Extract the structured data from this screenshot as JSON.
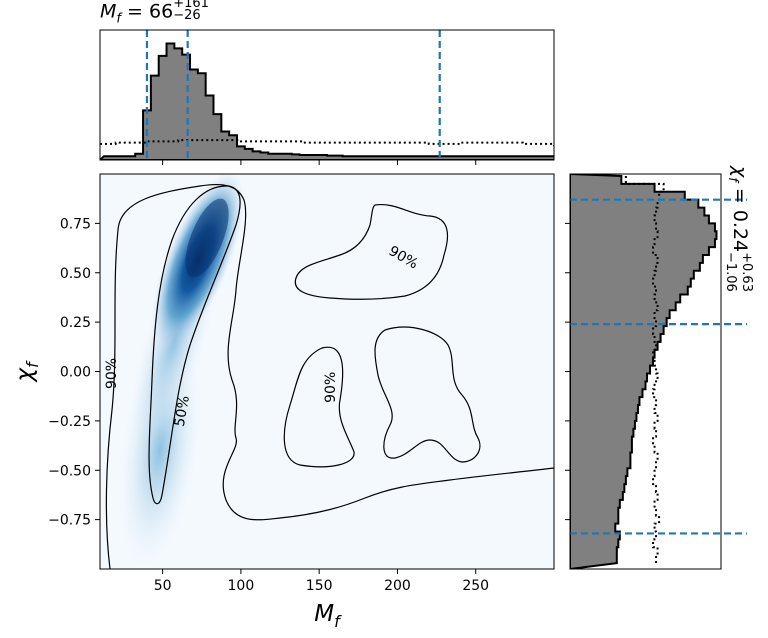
{
  "chart_data": {
    "type": "corner-plot",
    "joint": {
      "xlabel_sym": "M",
      "xlabel_sub": "f",
      "ylabel_sym": "χ",
      "ylabel_sub": "f",
      "xlim": [
        10,
        300
      ],
      "ylim": [
        -1.0,
        1.0
      ],
      "x_ticks": [
        50,
        100,
        150,
        200,
        250
      ],
      "y_ticks": [
        0.75,
        0.5,
        0.25,
        0.0,
        -0.25,
        -0.5,
        -0.75
      ],
      "x_tick_labels": [
        "50",
        "100",
        "150",
        "200",
        "250"
      ],
      "y_tick_labels": [
        "0.75",
        "0.50",
        "0.25",
        "0.00",
        "−0.25",
        "−0.50",
        "−0.75"
      ],
      "colormap": "Blues",
      "density_peak": {
        "Mf": 75,
        "chi_f": 0.65
      },
      "contour_labels": [
        {
          "text": "90%",
          "Mf": 17,
          "chi_f": -0.01,
          "rotation": -90
        },
        {
          "text": "50%",
          "Mf": 62,
          "chi_f": -0.2,
          "rotation": -80
        },
        {
          "text": "90%",
          "Mf": 157,
          "chi_f": -0.08,
          "rotation": -90
        },
        {
          "text": "90%",
          "Mf": 204,
          "chi_f": 0.58,
          "rotation": 30
        }
      ]
    },
    "marginal_Mf": {
      "title_value": "66",
      "title_upper": "+161",
      "title_lower": "−26",
      "median": 66,
      "lower": 40,
      "upper": 227,
      "line_color": "#1f77b4",
      "fill_color": "#808080",
      "posterior": {
        "bin_centers": [
          15,
          20,
          25,
          30,
          35,
          40,
          45,
          50,
          55,
          60,
          65,
          70,
          75,
          80,
          85,
          90,
          95,
          100,
          105,
          110,
          115,
          120,
          125,
          130,
          135,
          140,
          145,
          150,
          160,
          170,
          180,
          190,
          200,
          210,
          220,
          230,
          240,
          250,
          260,
          270,
          280,
          290,
          300
        ],
        "heights": [
          0.03,
          0.03,
          0.03,
          0.03,
          0.05,
          0.4,
          0.68,
          0.84,
          0.94,
          0.9,
          0.85,
          0.73,
          0.7,
          0.52,
          0.37,
          0.23,
          0.2,
          0.11,
          0.09,
          0.07,
          0.06,
          0.05,
          0.05,
          0.05,
          0.045,
          0.04,
          0.04,
          0.04,
          0.035,
          0.03,
          0.03,
          0.03,
          0.03,
          0.03,
          0.03,
          0.03,
          0.03,
          0.03,
          0.03,
          0.03,
          0.03,
          0.03,
          0.03
        ]
      },
      "prior": {
        "x": [
          10,
          20,
          30,
          40,
          50,
          60,
          70,
          80,
          90,
          100,
          120,
          140,
          160,
          180,
          200,
          220,
          240,
          260,
          280,
          300
        ],
        "heights": [
          0.13,
          0.14,
          0.14,
          0.15,
          0.15,
          0.16,
          0.16,
          0.16,
          0.16,
          0.15,
          0.15,
          0.14,
          0.14,
          0.14,
          0.14,
          0.13,
          0.14,
          0.14,
          0.13,
          0.12
        ]
      }
    },
    "marginal_chi": {
      "title_sym": "χ",
      "title_sub": "f",
      "title_value": "0.24",
      "title_upper": "+0.63",
      "title_lower": "−1.06",
      "median": 0.24,
      "lower": -0.82,
      "upper": 0.87,
      "line_color": "#1f77b4",
      "fill_color": "#808080",
      "posterior": {
        "chi": [
          0.97,
          0.93,
          0.89,
          0.85,
          0.81,
          0.77,
          0.73,
          0.69,
          0.65,
          0.61,
          0.57,
          0.53,
          0.49,
          0.45,
          0.41,
          0.37,
          0.33,
          0.29,
          0.25,
          0.21,
          0.17,
          0.13,
          0.09,
          0.05,
          0.01,
          -0.03,
          -0.07,
          -0.11,
          -0.15,
          -0.19,
          -0.23,
          -0.27,
          -0.31,
          -0.35,
          -0.39,
          -0.43,
          -0.47,
          -0.51,
          -0.55,
          -0.59,
          -0.63,
          -0.67,
          -0.71,
          -0.75,
          -0.79,
          -0.83,
          -0.87,
          -0.91,
          -0.95
        ],
        "widths": [
          0.34,
          0.56,
          0.76,
          0.85,
          0.89,
          0.92,
          0.96,
          0.97,
          0.96,
          0.92,
          0.88,
          0.86,
          0.82,
          0.8,
          0.78,
          0.73,
          0.7,
          0.66,
          0.64,
          0.62,
          0.6,
          0.58,
          0.56,
          0.55,
          0.53,
          0.51,
          0.5,
          0.48,
          0.46,
          0.45,
          0.44,
          0.43,
          0.42,
          0.41,
          0.41,
          0.4,
          0.4,
          0.38,
          0.37,
          0.36,
          0.35,
          0.33,
          0.32,
          0.32,
          0.3,
          0.33,
          0.32,
          0.31,
          0.31
        ]
      },
      "prior": {
        "chi": [
          0.97,
          0.93,
          0.89,
          0.85,
          0.81,
          0.77,
          0.73,
          0.69,
          0.65,
          0.61,
          0.57,
          0.53,
          0.49,
          0.45,
          0.41,
          0.37,
          0.33,
          0.29,
          0.25,
          0.21,
          0.17,
          0.13,
          0.09,
          0.05,
          0.01,
          -0.03,
          -0.07,
          -0.11,
          -0.15,
          -0.19,
          -0.23,
          -0.27,
          -0.31,
          -0.35,
          -0.39,
          -0.43,
          -0.47,
          -0.51,
          -0.55,
          -0.59,
          -0.63,
          -0.67,
          -0.71,
          -0.75,
          -0.79,
          -0.83,
          -0.87,
          -0.91,
          -0.95
        ],
        "widths": [
          0.37,
          0.62,
          0.59,
          0.58,
          0.57,
          0.56,
          0.57,
          0.58,
          0.56,
          0.55,
          0.58,
          0.57,
          0.56,
          0.55,
          0.57,
          0.56,
          0.58,
          0.56,
          0.57,
          0.55,
          0.56,
          0.57,
          0.55,
          0.56,
          0.57,
          0.58,
          0.56,
          0.55,
          0.57,
          0.56,
          0.58,
          0.56,
          0.57,
          0.55,
          0.56,
          0.58,
          0.57,
          0.56,
          0.55,
          0.57,
          0.58,
          0.56,
          0.57,
          0.59,
          0.56,
          0.57,
          0.55,
          0.58,
          0.57
        ]
      }
    }
  }
}
